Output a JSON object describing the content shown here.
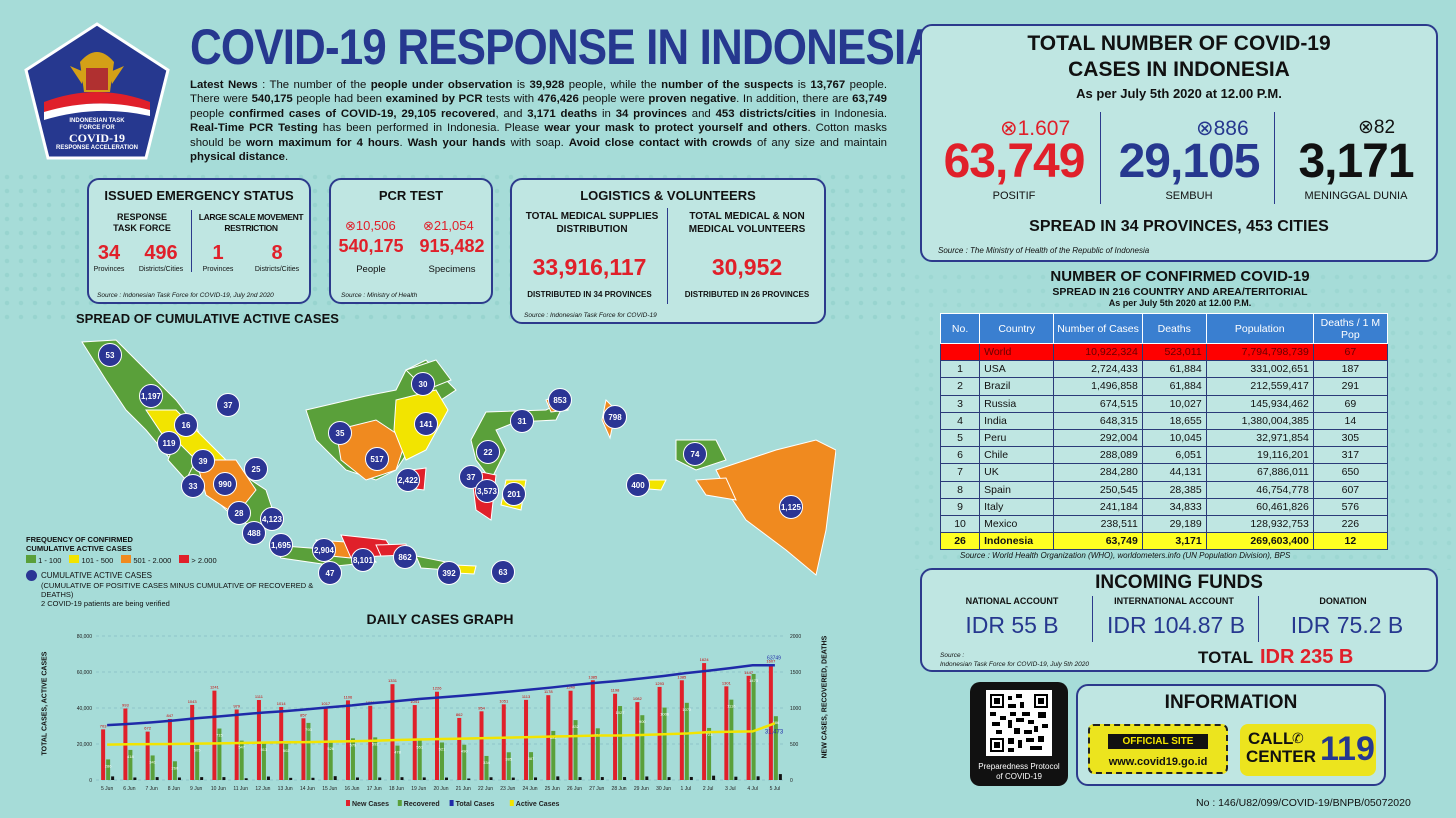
{
  "logo": {
    "line1": "INDONESIAN TASK",
    "line2": "FORCE FOR",
    "line3": "COVID-19",
    "line4": "RESPONSE ACCELERATION"
  },
  "title": "COVID-19 RESPONSE IN INDONESIA",
  "news": {
    "p1": "Latest News",
    "p2": " : The number of the ",
    "p3": "people under observation",
    "p4": " is ",
    "p5": "39,928",
    "p6": " people, while the ",
    "p7": "number of the suspects",
    "p8": " is ",
    "p9": "13,767",
    "p10": " people. There were ",
    "p11": "540,175",
    "p12": " people had been ",
    "p13": "examined by PCR",
    "p14": " tests with ",
    "p15": "476,426",
    "p16": " people were ",
    "p17": "proven negative",
    "p18": ". In addition, there are ",
    "p19": "63,749",
    "p20": " people ",
    "p21": "confirmed cases of COVID-19, 29,105 recovered",
    "p22": ", and ",
    "p23": "3,171 deaths",
    "p24": " in ",
    "p25": "34 provinces",
    "p26": " and ",
    "p27": "453 districts/cities",
    "p28": " in Indonesia. ",
    "p29": "Real-Time PCR Testing",
    "p30": " has been performed in Indonesia. Please ",
    "p31": "wear your mask to protect yourself and others",
    "p32": ". Cotton masks should be ",
    "p33": "worn maximum for 4 hours",
    "p34": ". ",
    "p35": "Wash your hands",
    "p36": " with soap. ",
    "p37": "Avoid close contact with crowds",
    "p38": " of any size and maintain ",
    "p39": "physical distance",
    "p40": "."
  },
  "emergency": {
    "title": "ISSUED EMERGENCY STATUS",
    "col1": "RESPONSE TASK FORCE",
    "col2": "LARGE SCALE MOVEMENT RESTRICTION",
    "v1": "34",
    "l1": "Provinces",
    "v2": "496",
    "l2": "Districts/Cities",
    "v3": "1",
    "l3": "Provinces",
    "v4": "8",
    "l4": "Districts/Cities",
    "source": "Source : Indonesian Task Force for COVID-19, July 2nd 2020"
  },
  "pcr": {
    "title": "PCR TEST",
    "inc1": "10,506",
    "inc2": "21,054",
    "v1": "540,175",
    "v2": "915,482",
    "l1": "People",
    "l2": "Specimens",
    "source": "Source : Ministry of Health"
  },
  "logistics": {
    "title": "LOGISTICS & VOLUNTEERS",
    "h1": "TOTAL MEDICAL SUPPLIES DISTRIBUTION",
    "h2": "TOTAL MEDICAL & NON MEDICAL VOLUNTEERS",
    "v1": "33,916,117",
    "v2": "30,952",
    "d1": "DISTRIBUTED IN 34 PROVINCES",
    "d2": "DISTRIBUTED IN 26 PROVINCES",
    "source": "Source : Indonesian Task Force for COVID-19"
  },
  "total": {
    "title1": "TOTAL NUMBER OF COVID-19",
    "title2": "CASES IN INDONESIA",
    "asof": "As per July 5th 2020 at 12.00 P.M.",
    "inc1": "1.607",
    "inc2": "886",
    "inc3": "82",
    "v1": "63,749",
    "v2": "29,105",
    "v3": "3,171",
    "l1": "POSITIF",
    "l2": "SEMBUH",
    "l3": "MENINGGAL DUNIA",
    "spread": "SPREAD IN 34 PROVINCES, 453 CITIES",
    "source": "Source : The Ministry of Health of the Republic of Indonesia"
  },
  "world": {
    "title": "NUMBER OF CONFIRMED COVID-19",
    "sub": "SPREAD IN 216 COUNTRY AND AREA/TERITORIAL",
    "asof": "As per July 5th 2020 at 12.00 P.M.",
    "headers": [
      "No.",
      "Country",
      "Number of Cases",
      "Deaths",
      "Population",
      "Deaths / 1 M Pop"
    ],
    "rows": [
      [
        "",
        "World",
        "10,922,324",
        "523,011",
        "7,794,798,739",
        "67"
      ],
      [
        "1",
        "USA",
        "2,724,433",
        "61,884",
        "331,002,651",
        "187"
      ],
      [
        "2",
        "Brazil",
        "1,496,858",
        "61,884",
        "212,559,417",
        "291"
      ],
      [
        "3",
        "Russia",
        "674,515",
        "10,027",
        "145,934,462",
        "69"
      ],
      [
        "4",
        "India",
        "648,315",
        "18,655",
        "1,380,004,385",
        "14"
      ],
      [
        "5",
        "Peru",
        "292,004",
        "10,045",
        "32,971,854",
        "305"
      ],
      [
        "6",
        "Chile",
        "288,089",
        "6,051",
        "19,116,201",
        "317"
      ],
      [
        "7",
        "UK",
        "284,280",
        "44,131",
        "67,886,011",
        "650"
      ],
      [
        "8",
        "Spain",
        "250,545",
        "28,385",
        "46,754,778",
        "607"
      ],
      [
        "9",
        "Italy",
        "241,184",
        "34,833",
        "60,461,826",
        "576"
      ],
      [
        "10",
        "Mexico",
        "238,511",
        "29,189",
        "128,932,753",
        "226"
      ],
      [
        "26",
        "Indonesia",
        "63,749",
        "3,171",
        "269,603,400",
        "12"
      ]
    ],
    "source": "Source : World Health Organization (WHO), worldometers.info (UN Population Division), BPS"
  },
  "funds": {
    "title": "INCOMING FUNDS",
    "h1": "NATIONAL ACCOUNT",
    "h2": "INTERNATIONAL ACCOUNT",
    "h3": "DONATION",
    "v1": "IDR 55 B",
    "v2": "IDR 104.87 B",
    "v3": "IDR 75.2 B",
    "source1": "Source :",
    "source2": "Indonesian Task Force for COVID-19, July 5th 2020",
    "total_label": "TOTAL",
    "total_value": "IDR 235 B"
  },
  "qr": {
    "caption": "Preparedness Protocol of COVID-19"
  },
  "info": {
    "title": "INFORMATION",
    "official": "OFFICIAL SITE",
    "url": "www.covid19.go.id",
    "call1": "CALL",
    "call2": "CENTER",
    "num": "119"
  },
  "footer": "No : 146/U82/099/COVID-19/BNPB/05072020",
  "map": {
    "title": "SPREAD OF CUMULATIVE ACTIVE CASES",
    "legend_title1": "FREQUENCY OF CONFIRMED",
    "legend_title2": "CUMULATIVE ACTIVE CASES",
    "legend": [
      "1 - 100",
      "101 - 500",
      "501 - 2.000",
      "> 2.000"
    ],
    "circle_title": "CUMULATIVE ACTIVE CASES",
    "circle_note1": "(CUMULATIVE OF POSITIVE CASES MINUS CUMULATIVE OF RECOVERED & DEATHS)",
    "circle_note2": "2 COVID-19 patients are being verified",
    "circles": [
      "53",
      "1,197",
      "37",
      "16",
      "119",
      "39",
      "25",
      "990",
      "33",
      "28",
      "4,123",
      "488",
      "1,695",
      "2,904",
      "8,101",
      "47",
      "862",
      "392",
      "63",
      "30",
      "35",
      "141",
      "517",
      "2,422",
      "37",
      "3,573",
      "201",
      "22",
      "31",
      "853",
      "798",
      "74",
      "400",
      "1,125"
    ]
  },
  "chart_data": {
    "type": "bar",
    "title": "DAILY CASES GRAPH",
    "ylabel": "TOTAL CASES, ACTIVE CASES",
    "y2label": "NEW CASES, RECOVERED, DEATHS",
    "categories": [
      "5 Jun",
      "6 Jun",
      "7 Jun",
      "8 Jun",
      "9 Jun",
      "10 Jun",
      "11 Jun",
      "12 Jun",
      "13 Jun",
      "14 Jun",
      "15 Jun",
      "16 Jun",
      "17 Jun",
      "18 Jun",
      "19 Jun",
      "20 Jun",
      "21 Jun",
      "22 Jun",
      "23 Jun",
      "24 Jun",
      "25 Jun",
      "26 Jun",
      "27 Jun",
      "28 Jun",
      "29 Jun",
      "30 Jun",
      "1 Jul",
      "2 Jul",
      "3 Jul",
      "4 Jul",
      "5 Jul"
    ],
    "y_ticks": [
      "80,000",
      "60,000",
      "40,000",
      "20,000",
      "0"
    ],
    "y2_ticks": [
      "2000",
      "1500",
      "1000",
      "500",
      "0"
    ],
    "y2lim": [
      0,
      2000
    ],
    "series": [
      {
        "name": "New Cases",
        "color": "#e0202a",
        "values": [
          703,
          993,
          672,
          847,
          1043,
          1241,
          979,
          1111,
          1014,
          857,
          1017,
          1106,
          1031,
          1331,
          1041,
          1226,
          862,
          954,
          1051,
          1113,
          1178,
          1240,
          1385,
          1198,
          1082,
          1293,
          1385,
          1624,
          1301,
          1447,
          1607
        ]
      },
      {
        "name": "Recovered",
        "color": "#5aa03a",
        "values": [
          286,
          418,
          341,
          260,
          505,
          715,
          547,
          513,
          502,
          793,
          526,
          579,
          592,
          478,
          551,
          521,
          490,
          334,
          385,
          387,
          682,
          832,
          718,
          1027,
          900,
          1006,
          1072,
          723,
          1116,
          1473,
          886
        ]
      },
      {
        "name": "Total Cases",
        "color": "#1f2aa8",
        "values": [
          30514,
          31186,
          32033,
          33076,
          34316,
          35295,
          36406,
          37420,
          38277,
          39294,
          40400,
          41431,
          42762,
          43803,
          45029,
          45891,
          46845,
          47896,
          49009,
          50187,
          51427,
          52812,
          54010,
          55092,
          56385,
          57770,
          59394,
          60695,
          62142,
          63749,
          63749
        ]
      },
      {
        "name": "Active Cases",
        "color": "#f2e400",
        "values": [
          19660,
          19888,
          19920,
          20000,
          20210,
          20335,
          20536,
          20754,
          20970,
          21072,
          21351,
          21544,
          21818,
          22191,
          22471,
          22757,
          22976,
          23280,
          23532,
          23800,
          24196,
          24400,
          24700,
          24700,
          25000,
          25400,
          25800,
          26600,
          26800,
          27000,
          31473
        ]
      },
      {
        "name": "Deaths",
        "color": "#111",
        "values": [
          50,
          35,
          40,
          35,
          40,
          40,
          24,
          48,
          30,
          31,
          53,
          35,
          35,
          39,
          36,
          34,
          21,
          38,
          34,
          36,
          50,
          40,
          41,
          41,
          49,
          40,
          42,
          60,
          46,
          51,
          82
        ]
      }
    ],
    "label_total": "63749",
    "label_active": "31,473"
  }
}
